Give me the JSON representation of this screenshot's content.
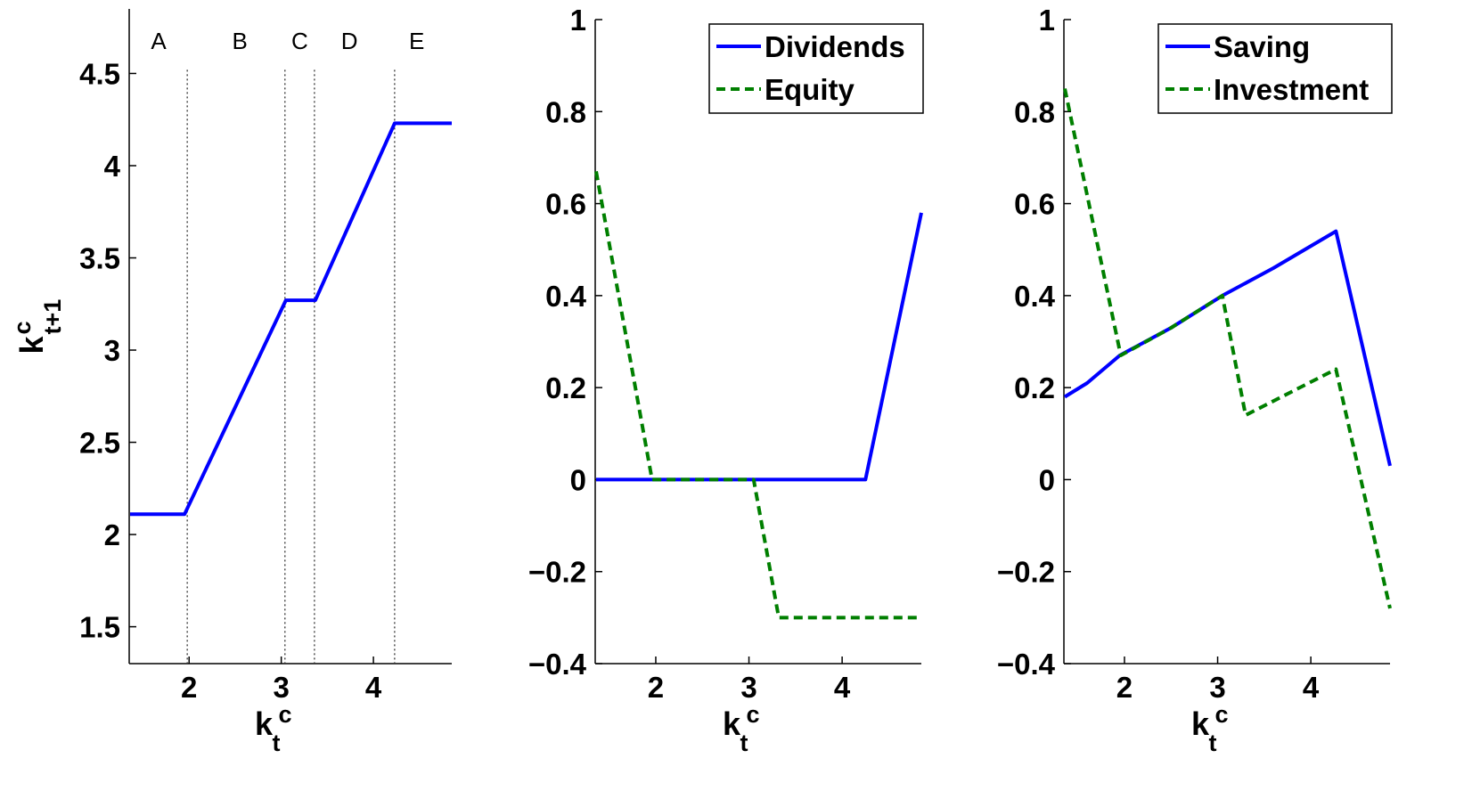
{
  "colors": {
    "blue": "#0000ff",
    "green": "#007f00",
    "divider": "#333333",
    "axis": "#000000"
  },
  "chart_data": [
    {
      "type": "line",
      "title": "",
      "xlim": [
        1.35,
        4.85
      ],
      "ylim": [
        1.3,
        4.85
      ],
      "xticks": [
        {
          "v": 2,
          "label": "2"
        },
        {
          "v": 3,
          "label": "3"
        },
        {
          "v": 4,
          "label": "4"
        }
      ],
      "yticks": [
        {
          "v": 1.5,
          "label": "1.5"
        },
        {
          "v": 2,
          "label": "2"
        },
        {
          "v": 2.5,
          "label": "2.5"
        },
        {
          "v": 3,
          "label": "3"
        },
        {
          "v": 3.5,
          "label": "3.5"
        },
        {
          "v": 4,
          "label": "4"
        },
        {
          "v": 4.5,
          "label": "4.5"
        }
      ],
      "xlabel": {
        "base": "k",
        "sup": "c",
        "sub": "t"
      },
      "ylabel": {
        "base": "k",
        "sup": "c",
        "sub": "t+1"
      },
      "regions": [
        {
          "label": "A",
          "x": 1.67
        },
        {
          "label": "B",
          "x": 2.55
        },
        {
          "label": "C",
          "x": 3.2
        },
        {
          "label": "D",
          "x": 3.74
        },
        {
          "label": "E",
          "x": 4.47
        }
      ],
      "dividers": [
        1.98,
        3.04,
        3.36,
        4.23
      ],
      "divider_top": 4.52,
      "series": [
        {
          "style": "solid",
          "color": "#0000ff",
          "points": [
            [
              1.36,
              2.11
            ],
            [
              1.95,
              2.11
            ],
            [
              3.05,
              3.27
            ],
            [
              3.37,
              3.27
            ],
            [
              4.23,
              4.23
            ],
            [
              4.85,
              4.23
            ]
          ]
        }
      ],
      "legend": null
    },
    {
      "type": "line",
      "title": "",
      "xlim": [
        1.35,
        4.85
      ],
      "ylim": [
        -0.4,
        1.0
      ],
      "xticks": [
        {
          "v": 2,
          "label": "2"
        },
        {
          "v": 3,
          "label": "3"
        },
        {
          "v": 4,
          "label": "4"
        }
      ],
      "yticks": [
        {
          "v": -0.4,
          "label": "−0.4"
        },
        {
          "v": -0.2,
          "label": "−0.2"
        },
        {
          "v": 0,
          "label": "0"
        },
        {
          "v": 0.2,
          "label": "0.2"
        },
        {
          "v": 0.4,
          "label": "0.4"
        },
        {
          "v": 0.6,
          "label": "0.6"
        },
        {
          "v": 0.8,
          "label": "0.8"
        },
        {
          "v": 1,
          "label": "1"
        }
      ],
      "xlabel": {
        "base": "k",
        "sup": "c",
        "sub": "t"
      },
      "ylabel": null,
      "series": [
        {
          "name": "Dividends",
          "style": "solid",
          "color": "#0000ff",
          "points": [
            [
              1.36,
              0.0
            ],
            [
              4.25,
              0.0
            ],
            [
              4.85,
              0.58
            ]
          ]
        },
        {
          "name": "Equity",
          "style": "dashed",
          "color": "#007f00",
          "points": [
            [
              1.36,
              0.67
            ],
            [
              1.96,
              0.0
            ],
            [
              3.05,
              0.0
            ],
            [
              3.32,
              -0.3
            ],
            [
              4.85,
              -0.3
            ]
          ]
        }
      ],
      "legend": {
        "placement": "top-right",
        "entries": [
          "Dividends",
          "Equity"
        ]
      }
    },
    {
      "type": "line",
      "title": "",
      "xlim": [
        1.35,
        4.85
      ],
      "ylim": [
        -0.4,
        1.0
      ],
      "xticks": [
        {
          "v": 2,
          "label": "2"
        },
        {
          "v": 3,
          "label": "3"
        },
        {
          "v": 4,
          "label": "4"
        }
      ],
      "yticks": [
        {
          "v": -0.4,
          "label": "−0.4"
        },
        {
          "v": -0.2,
          "label": "−0.2"
        },
        {
          "v": 0,
          "label": "0"
        },
        {
          "v": 0.2,
          "label": "0.2"
        },
        {
          "v": 0.4,
          "label": "0.4"
        },
        {
          "v": 0.6,
          "label": "0.6"
        },
        {
          "v": 0.8,
          "label": "0.8"
        },
        {
          "v": 1,
          "label": "1"
        }
      ],
      "xlabel": {
        "base": "k",
        "sup": "c",
        "sub": "t"
      },
      "ylabel": null,
      "series": [
        {
          "name": "Saving",
          "style": "solid",
          "color": "#0000ff",
          "points": [
            [
              1.36,
              0.18
            ],
            [
              1.6,
              0.21
            ],
            [
              1.95,
              0.27
            ],
            [
              2.5,
              0.33
            ],
            [
              3.05,
              0.4
            ],
            [
              3.6,
              0.46
            ],
            [
              4.27,
              0.54
            ],
            [
              4.85,
              0.03
            ]
          ]
        },
        {
          "name": "Investment",
          "style": "dashed",
          "color": "#007f00",
          "points": [
            [
              1.36,
              0.85
            ],
            [
              1.96,
              0.27
            ],
            [
              2.5,
              0.33
            ],
            [
              3.05,
              0.4
            ],
            [
              3.3,
              0.14
            ],
            [
              4.27,
              0.24
            ],
            [
              4.85,
              -0.28
            ]
          ]
        }
      ],
      "legend": {
        "placement": "top-right",
        "entries": [
          "Saving",
          "Investment"
        ]
      }
    }
  ]
}
